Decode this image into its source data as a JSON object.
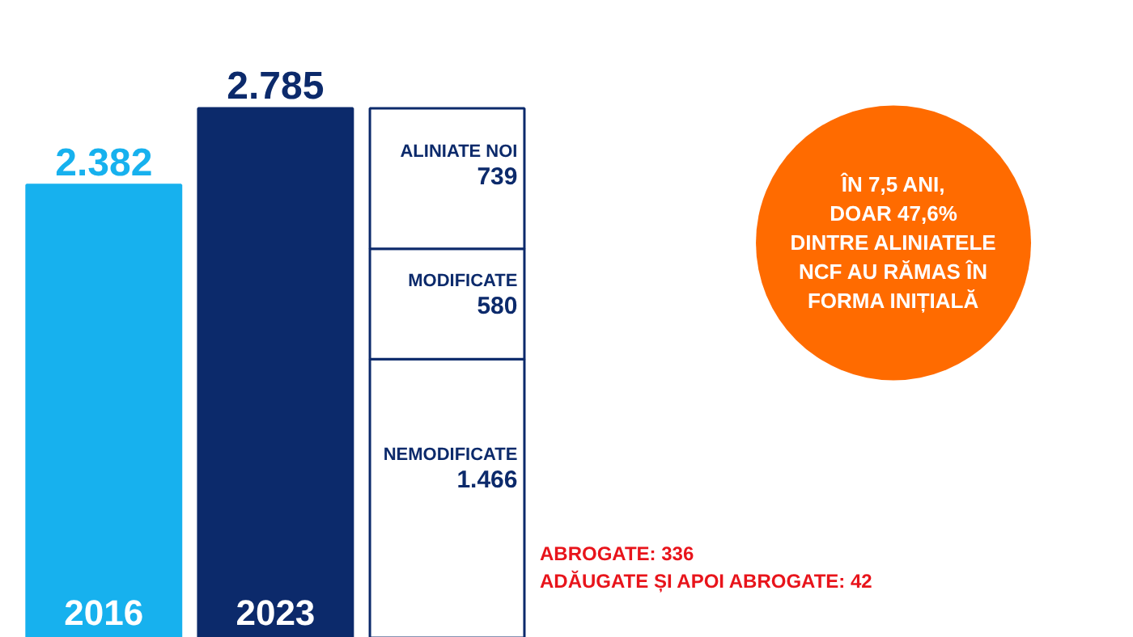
{
  "chart_data": {
    "type": "bar",
    "stacked": true,
    "categories": [
      "2016",
      "2023",
      null
    ],
    "ylim": [
      0,
      3350
    ],
    "tick_labels": "x",
    "grid": false,
    "series": [
      {
        "colors": [
          "#17b1ee",
          "#0c2a6b",
          null
        ],
        "values": [
          2382,
          2785,
          null
        ],
        "value_labels": [
          "2.382",
          "2.785",
          null
        ]
      },
      {
        "name": "NEMODIFICATE",
        "color": "#ffffff",
        "values": [
          null,
          null,
          1466
        ],
        "value_labels": [
          null,
          null,
          "1.466"
        ]
      },
      {
        "name": "MODIFICATE",
        "color": "#ffffff",
        "values": [
          null,
          null,
          580
        ],
        "value_labels": [
          null,
          null,
          "580"
        ]
      },
      {
        "name": "ALINIATE NOI",
        "color": "#ffffff",
        "values": [
          null,
          null,
          739
        ],
        "value_labels": [
          null,
          null,
          "739"
        ]
      }
    ],
    "annotations": [
      "ÎN 7,5 ANI,\nDOAR 47,6%\nDINTRE ALINIATELE\nNCF AU RĂMAS ÎN\nFORMA INIȚIALĂ",
      "ABROGATE: 336",
      "ADĂUGATE ȘI APOI ABROGATE: 42"
    ]
  }
}
